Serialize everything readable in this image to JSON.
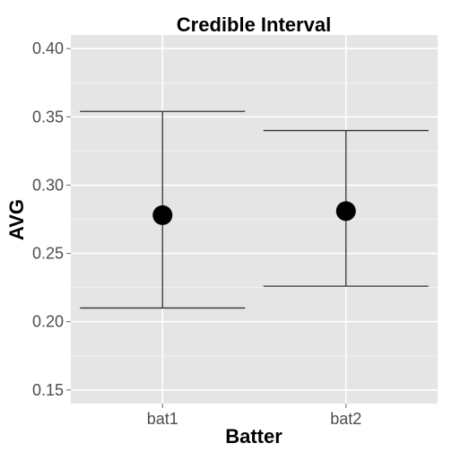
{
  "chart_data": {
    "type": "errorbar",
    "title": "Credible Interval",
    "xlabel": "Batter",
    "ylabel": "AVG",
    "categories": [
      "bat1",
      "bat2"
    ],
    "points": [
      {
        "category": "bat1",
        "estimate": 0.278,
        "lower": 0.21,
        "upper": 0.354
      },
      {
        "category": "bat2",
        "estimate": 0.281,
        "lower": 0.226,
        "upper": 0.34
      }
    ],
    "ylim": [
      0.14,
      0.41
    ],
    "y_ticks": [
      0.15,
      0.2,
      0.25,
      0.3,
      0.35,
      0.4
    ],
    "y_tick_labels": [
      "0.15",
      "0.20",
      "0.25",
      "0.30",
      "0.35",
      "0.40"
    ],
    "grid": true,
    "legend": "none",
    "colors": {
      "panel_background": "#e5e5e5",
      "major_grid": "#ffffff",
      "minor_grid": "#f2f2f2",
      "point": "#000000",
      "errorbar": "#333333",
      "tick_text": "#4d4d4d"
    }
  }
}
